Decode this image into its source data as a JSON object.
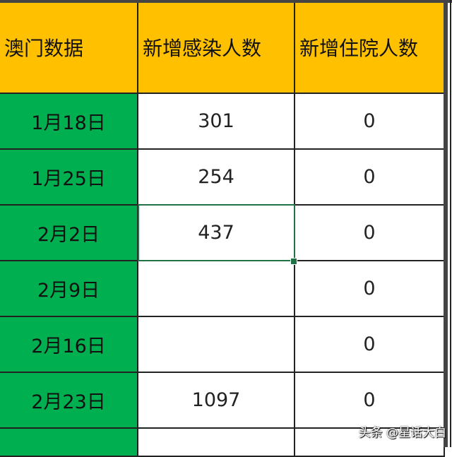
{
  "headers": [
    "澳门数据",
    "新增感染人数",
    "新增住院人数"
  ],
  "rows": [
    {
      "date": "1月18日",
      "infected": "301",
      "hospitalized": "0"
    },
    {
      "date": "1月25日",
      "infected": "254",
      "hospitalized": "0"
    },
    {
      "date": "2月2日",
      "infected": "437",
      "hospitalized": "0"
    },
    {
      "date": "2月9日",
      "infected": "",
      "hospitalized": "0"
    },
    {
      "date": "2月16日",
      "infected": "",
      "hospitalized": "0"
    },
    {
      "date": "2月23日",
      "infected": "1097",
      "hospitalized": "0"
    }
  ],
  "colors": {
    "header": "#FFC000",
    "date_column": "#00B050",
    "selection": "#217346"
  },
  "watermark": "头条 @星话大白"
}
